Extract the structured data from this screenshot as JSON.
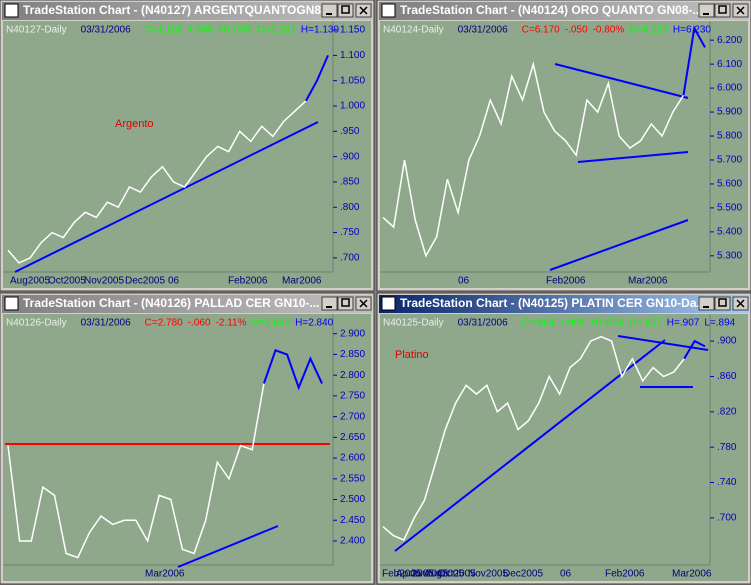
{
  "windows": [
    {
      "title": "TradeStation Chart - (N40127) ARGENTQUANTOGN8...",
      "header": [
        "N40127-Daily",
        "03/31/2006",
        "C=1.101",
        "+.008",
        "+0.73%",
        "O=1.127",
        "H=1.139"
      ],
      "annotation": "Argento",
      "chart": {
        "type": "line",
        "ylim": [
          0.68,
          1.16
        ],
        "yticks": [
          {
            "value": 1.15,
            "label": "1.150"
          },
          {
            "value": 1.1,
            "label": "1.100"
          },
          {
            "value": 1.05,
            "label": "1.050"
          },
          {
            "value": 1.0,
            "label": "1.000"
          },
          {
            "value": 0.95,
            "label": ".950"
          },
          {
            "value": 0.9,
            "label": ".900"
          },
          {
            "value": 0.85,
            "label": ".850"
          },
          {
            "value": 0.8,
            "label": ".800"
          },
          {
            "value": 0.75,
            "label": ".750"
          },
          {
            "value": 0.7,
            "label": ".700"
          }
        ],
        "xlabels": [
          "Aug2005",
          "Oct2005",
          "Nov2005",
          "Dec2005",
          "06",
          "Feb2006",
          "Mar2006"
        ],
        "series": [
          {
            "color": "#ffffff",
            "values": [
              0.715,
              0.69,
              0.7,
              0.73,
              0.75,
              0.74,
              0.77,
              0.79,
              0.78,
              0.81,
              0.8,
              0.84,
              0.83,
              0.86,
              0.88,
              0.85,
              0.84,
              0.87,
              0.9,
              0.92,
              0.91,
              0.95,
              0.93,
              0.96,
              0.94,
              0.97,
              0.99,
              1.01,
              null,
              null
            ]
          },
          {
            "color": "#0000ff",
            "values": [
              null,
              null,
              null,
              null,
              null,
              null,
              null,
              null,
              null,
              null,
              null,
              null,
              null,
              null,
              null,
              null,
              null,
              null,
              null,
              null,
              null,
              null,
              null,
              null,
              null,
              null,
              null,
              1.01,
              1.05,
              1.1
            ]
          }
        ]
      }
    },
    {
      "title": "TradeStation Chart - (N40124) ORO QUANTO GN08-...",
      "header": [
        "N40124-Daily",
        "03/31/2006",
        "C=6.170",
        "-.050",
        "-0.80%",
        "O=6.220",
        "H=6.230"
      ],
      "chart": {
        "type": "line",
        "ylim": [
          5.22,
          6.28
        ],
        "yticks": [
          {
            "value": 6.2,
            "label": "6.200"
          },
          {
            "value": 6.1,
            "label": "6.100"
          },
          {
            "value": 6.0,
            "label": "6.000"
          },
          {
            "value": 5.9,
            "label": "5.900"
          },
          {
            "value": 5.8,
            "label": "5.800"
          },
          {
            "value": 5.7,
            "label": "5.700"
          },
          {
            "value": 5.6,
            "label": "5.600"
          },
          {
            "value": 5.5,
            "label": "5.500"
          },
          {
            "value": 5.4,
            "label": "5.400"
          },
          {
            "value": 5.3,
            "label": "5.300"
          }
        ],
        "xlabels": [
          "06",
          "Feb2006",
          "Mar2006"
        ],
        "series": [
          {
            "color": "#ffffff",
            "values": [
              5.46,
              5.42,
              5.7,
              5.45,
              5.3,
              5.38,
              5.62,
              5.48,
              5.7,
              5.8,
              5.95,
              5.85,
              6.05,
              5.95,
              6.1,
              5.9,
              5.82,
              5.78,
              5.72,
              5.95,
              5.9,
              6.02,
              5.8,
              5.75,
              5.78,
              5.85,
              5.8,
              5.9,
              5.97,
              null,
              null
            ]
          },
          {
            "color": "#0000ff",
            "values": [
              null,
              null,
              null,
              null,
              null,
              null,
              null,
              null,
              null,
              null,
              null,
              null,
              null,
              null,
              null,
              null,
              null,
              null,
              null,
              null,
              null,
              null,
              null,
              null,
              null,
              null,
              null,
              null,
              5.97,
              6.25,
              6.17
            ]
          }
        ]
      }
    },
    {
      "title": "TradeStation Chart - (N40126) PALLAD CER GN10-...",
      "header": [
        "N40126-Daily",
        "03/31/2006",
        "C=2.780",
        "-.060",
        "-2.11%",
        "O=2.840",
        "H=2.840"
      ],
      "chart": {
        "type": "line",
        "ylim": [
          2.33,
          2.95
        ],
        "yticks": [
          {
            "value": 2.9,
            "label": "2.900"
          },
          {
            "value": 2.85,
            "label": "2.850"
          },
          {
            "value": 2.8,
            "label": "2.800"
          },
          {
            "value": 2.75,
            "label": "2.750"
          },
          {
            "value": 2.7,
            "label": "2.700"
          },
          {
            "value": 2.65,
            "label": "2.650"
          },
          {
            "value": 2.6,
            "label": "2.600"
          },
          {
            "value": 2.55,
            "label": "2.550"
          },
          {
            "value": 2.5,
            "label": "2.500"
          },
          {
            "value": 2.45,
            "label": "2.450"
          },
          {
            "value": 2.4,
            "label": "2.400"
          }
        ],
        "xlabels": [
          "Mar2006"
        ],
        "series": [
          {
            "color": "#ffffff",
            "values": [
              2.63,
              2.4,
              2.4,
              2.53,
              2.51,
              2.37,
              2.36,
              2.42,
              2.46,
              2.44,
              2.45,
              2.45,
              2.4,
              2.51,
              2.5,
              2.38,
              2.37,
              2.45,
              2.59,
              2.55,
              2.63,
              2.62,
              2.78,
              null,
              null,
              null,
              null,
              null
            ]
          },
          {
            "color": "#0000ff",
            "values": [
              null,
              null,
              null,
              null,
              null,
              null,
              null,
              null,
              null,
              null,
              null,
              null,
              null,
              null,
              null,
              null,
              null,
              null,
              null,
              null,
              null,
              null,
              2.78,
              2.86,
              2.85,
              2.77,
              2.84,
              2.78
            ]
          }
        ]
      }
    },
    {
      "title": "TradeStation Chart - (N40125) PLATIN CER GN10-Da...",
      "header": [
        "N40125-Daily",
        "03/31/2006",
        "C=.894",
        "+.004",
        "+0.45%",
        "O=.907",
        "H=.907",
        "L=.894"
      ],
      "annotation": "Platino",
      "chart": {
        "type": "line",
        "ylim": [
          0.675,
          0.925
        ],
        "yticks": [
          {
            "value": 0.9,
            "label": ".900"
          },
          {
            "value": 0.86,
            "label": ".860"
          },
          {
            "value": 0.82,
            "label": ".820"
          },
          {
            "value": 0.78,
            "label": ".780"
          },
          {
            "value": 0.74,
            "label": ".740"
          },
          {
            "value": 0.7,
            "label": ".700"
          }
        ],
        "xlabels": [
          "Feb2005",
          "Apr2005",
          "Jun2005",
          "Aug2005",
          "Oct2005",
          "Nov2005",
          "Dec2005",
          "06",
          "Feb2006",
          "Mar2006"
        ],
        "series": [
          {
            "color": "#ffffff",
            "values": [
              0.69,
              0.68,
              0.675,
              0.7,
              0.72,
              0.76,
              0.8,
              0.83,
              0.85,
              0.84,
              0.85,
              0.82,
              0.83,
              0.8,
              0.81,
              0.83,
              0.86,
              0.84,
              0.87,
              0.88,
              0.9,
              0.905,
              0.9,
              0.86,
              0.88,
              0.855,
              0.87,
              0.86,
              0.865,
              0.88,
              null,
              null
            ]
          },
          {
            "color": "#0000ff",
            "values": [
              null,
              null,
              null,
              null,
              null,
              null,
              null,
              null,
              null,
              null,
              null,
              null,
              null,
              null,
              null,
              null,
              null,
              null,
              null,
              null,
              null,
              null,
              null,
              null,
              null,
              null,
              null,
              null,
              null,
              0.88,
              0.9,
              0.894
            ]
          }
        ]
      }
    }
  ]
}
